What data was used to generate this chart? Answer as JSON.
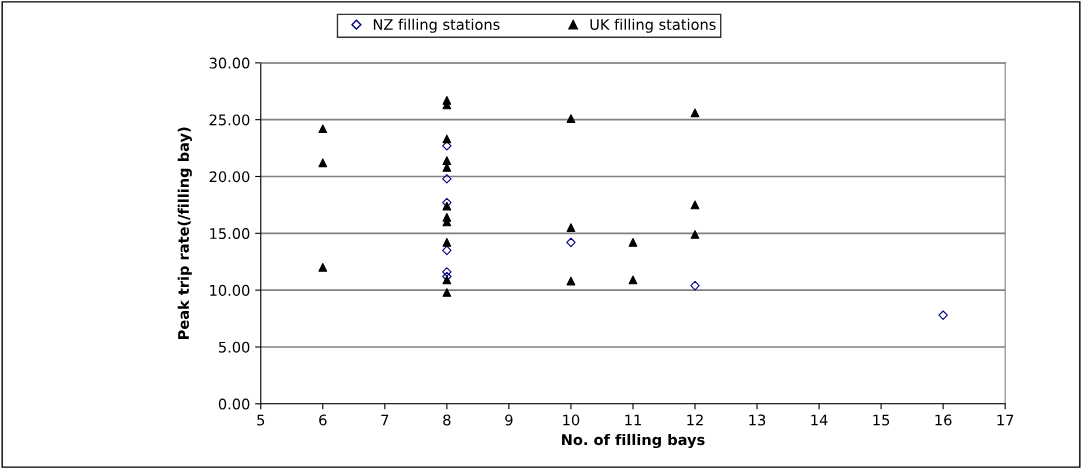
{
  "chart_data": {
    "type": "scatter",
    "xlabel": "No. of filling bays",
    "ylabel": "Peak trip rate(/filling bay)",
    "xlim": [
      5,
      17
    ],
    "xticks": [
      5,
      6,
      7,
      8,
      9,
      10,
      11,
      12,
      13,
      14,
      15,
      16,
      17
    ],
    "ylim": [
      0,
      30
    ],
    "yticks": [
      {
        "value": 0,
        "label": "0.00"
      },
      {
        "value": 5,
        "label": "5.00"
      },
      {
        "value": 10,
        "label": "10.00"
      },
      {
        "value": 15,
        "label": "15.00"
      },
      {
        "value": 20,
        "label": "20.00"
      },
      {
        "value": 25,
        "label": "25.00"
      },
      {
        "value": 30,
        "label": "30.00"
      }
    ],
    "grid": "y",
    "legend": "top",
    "series": [
      {
        "name": "NZ filling stations",
        "color": "#000080",
        "marker": "diamond",
        "x": [
          8,
          8,
          8,
          8,
          8,
          8,
          10,
          12,
          16
        ],
        "values": [
          22.7,
          19.8,
          17.7,
          13.5,
          11.6,
          11.2,
          14.2,
          10.4,
          7.8
        ]
      },
      {
        "name": "UK filling stations",
        "color": "#000000",
        "marker": "triangle",
        "x": [
          6,
          6,
          6,
          8,
          8,
          8,
          8,
          8,
          8,
          8,
          8,
          8,
          8,
          8,
          10,
          10,
          10,
          11,
          11,
          12,
          12,
          12
        ],
        "values": [
          24.2,
          21.2,
          12.0,
          26.7,
          26.3,
          23.3,
          21.4,
          17.4,
          16.4,
          16.0,
          14.2,
          10.9,
          9.8,
          20.8,
          25.1,
          15.5,
          10.8,
          14.2,
          10.9,
          25.6,
          17.5,
          14.9
        ]
      }
    ]
  }
}
